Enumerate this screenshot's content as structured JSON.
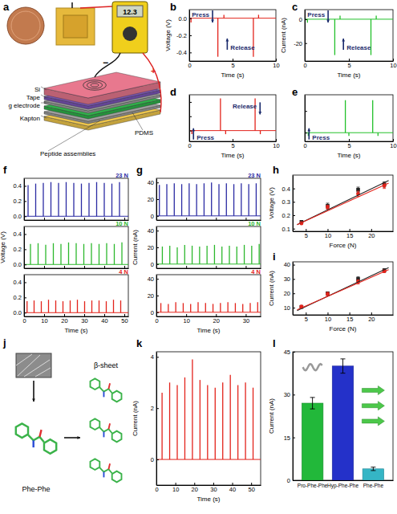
{
  "panel_a": {
    "panel": "a",
    "meter_reading": "12.3",
    "labels": [
      "Si",
      "Tape",
      "g electrode",
      "Kapton",
      "PDMS",
      "Peptide assemblies"
    ],
    "polarity": [
      "−",
      "+"
    ]
  },
  "panel_j": {
    "panel": "j",
    "labels": [
      "Phe-Phe",
      "β-sheet"
    ]
  },
  "chart_data": [
    {
      "panel": "b",
      "type": "spike",
      "x_label": "Time (s)",
      "y_label": "Voltage (V)",
      "xlim": [
        0,
        10
      ],
      "ylim": [
        -0.5,
        0.1
      ],
      "xticks": [
        0,
        5,
        10
      ],
      "yticks": [
        {
          "value": 0,
          "label": "0.0"
        },
        -0.2,
        -0.4
      ],
      "annotations": [
        "Press",
        "Release"
      ],
      "series": [
        {
          "color": "#e3231b",
          "x": [
            0.2,
            3.3,
            4.0,
            7.4,
            8.0
          ],
          "values": [
            -0.05,
            -0.45,
            0.04,
            -0.45,
            0.04
          ]
        }
      ]
    },
    {
      "panel": "c",
      "type": "spike",
      "x_label": "Time (s)",
      "y_label": "Current (nA)",
      "xlim": [
        0,
        10
      ],
      "ylim": [
        -35,
        8
      ],
      "xticks": [
        0,
        5,
        10
      ],
      "yticks": [
        0,
        -20
      ],
      "annotations": [
        "Press",
        "Release"
      ],
      "series": [
        {
          "color": "#22c02a",
          "x": [
            0.3,
            3.4,
            4.0,
            7.5,
            8.1
          ],
          "values": [
            -3,
            -30,
            3,
            -30,
            3
          ]
        }
      ]
    },
    {
      "panel": "d",
      "type": "spike",
      "x_label": "Time (s)",
      "xlim": [
        0,
        10
      ],
      "ylim": [
        -0.15,
        0.5
      ],
      "xticks": [
        0,
        5,
        10
      ],
      "yticks": [
        0,
        0.2,
        0.4
      ],
      "tick_labels": "x",
      "annotations": [
        "Press",
        "Release"
      ],
      "series": [
        {
          "color": "#e3231b",
          "x": [
            0.3,
            3.6,
            4.2,
            7.6,
            8.2
          ],
          "values": [
            -0.05,
            0.45,
            -0.05,
            0.45,
            -0.05
          ]
        }
      ]
    },
    {
      "panel": "e",
      "type": "spike",
      "x_label": "Time (s)",
      "xlim": [
        0,
        10
      ],
      "ylim": [
        -8,
        35
      ],
      "xticks": [
        0,
        5,
        10
      ],
      "yticks": [
        0,
        20
      ],
      "tick_labels": "x",
      "annotations": [
        "Press"
      ],
      "series": [
        {
          "color": "#22c02a",
          "x": [
            0.4,
            4.6,
            5.0,
            7.7,
            8.3
          ],
          "values": [
            -3,
            30,
            -3,
            30,
            -3
          ]
        }
      ]
    },
    {
      "panel": "f",
      "type": "spike",
      "xlim": [
        0,
        52
      ],
      "ylim": [
        -0.05,
        0.5
      ],
      "xticks": [
        0,
        10,
        20,
        30,
        40,
        50
      ],
      "yticks": [
        {
          "value": 0,
          "label": "0.0"
        },
        0.2,
        0.4
      ],
      "tick_labels": "y",
      "annotations": [
        "23 N"
      ],
      "series": [
        {
          "color": "#2b2ba3",
          "x": [
            2,
            5.8,
            9.6,
            13.4,
            17.2,
            21,
            24.8,
            28.6,
            32.4,
            36.2,
            40,
            43.8,
            47.6
          ],
          "values": [
            0.41,
            0.43,
            0.44,
            0.45,
            0.44,
            0.45,
            0.44,
            0.43,
            0.44,
            0.45,
            0.44,
            0.43,
            0.45
          ]
        }
      ]
    },
    {
      "type": "spike",
      "y_label": "Voltage (V)",
      "xlim": [
        0,
        52
      ],
      "ylim": [
        -0.05,
        0.5
      ],
      "xticks": [
        0,
        10,
        20,
        30,
        40,
        50
      ],
      "yticks": [
        {
          "value": 0,
          "label": "0.0"
        },
        0.2,
        0.4
      ],
      "tick_labels": "y",
      "annotations": [
        "10 N"
      ],
      "series": [
        {
          "color": "#2db82d",
          "x": [
            3.2,
            7,
            10.8,
            14.6,
            18.4,
            22.2,
            26,
            29.8,
            33.6,
            37.4,
            41.2,
            45,
            48.8
          ],
          "values": [
            0.27,
            0.28,
            0.26,
            0.28,
            0.27,
            0.29,
            0.28,
            0.27,
            0.28,
            0.27,
            0.28,
            0.27,
            0.29
          ]
        }
      ]
    },
    {
      "type": "spike",
      "x_label": "Time (s)",
      "xlim": [
        0,
        52
      ],
      "ylim": [
        -0.05,
        0.5
      ],
      "xticks": [
        0,
        10,
        20,
        30,
        40,
        50
      ],
      "yticks": [
        {
          "value": 0,
          "label": "0.0"
        },
        0.2,
        0.4
      ],
      "annotations": [
        "4 N"
      ],
      "series": [
        {
          "color": "#e3231b",
          "x": [
            1.5,
            5,
            8.6,
            12.2,
            15.8,
            19.4,
            23,
            26.6,
            30.2,
            33.8,
            37.4,
            41,
            44.6,
            48.2
          ],
          "values": [
            0.15,
            0.16,
            0.15,
            0.17,
            0.16,
            0.15,
            0.16,
            0.17,
            0.15,
            0.16,
            0.16,
            0.15,
            0.17,
            0.16
          ]
        }
      ]
    },
    {
      "panel": "g",
      "type": "spike",
      "xlim": [
        0,
        35
      ],
      "ylim": [
        -5,
        45
      ],
      "xticks": [
        0,
        10,
        20,
        30
      ],
      "yticks": [
        0,
        20,
        40
      ],
      "tick_labels": "y",
      "annotations": [
        "23 N"
      ],
      "series": [
        {
          "color": "#2b2ba3",
          "x": [
            1,
            3.5,
            6,
            8.5,
            11,
            13.5,
            16,
            18.5,
            21,
            23.5,
            26,
            28.5,
            31,
            33.5
          ],
          "values": [
            37,
            38,
            39,
            38,
            39,
            38,
            39,
            40,
            38,
            39,
            38,
            39,
            38,
            39
          ]
        }
      ]
    },
    {
      "type": "spike",
      "y_label": "Current (nA)",
      "xlim": [
        0,
        35
      ],
      "ylim": [
        -5,
        45
      ],
      "xticks": [
        0,
        10,
        20,
        30
      ],
      "yticks": [
        0,
        20,
        40
      ],
      "tick_labels": "y",
      "annotations": [
        "10 N"
      ],
      "series": [
        {
          "color": "#2db82d",
          "x": [
            2,
            4.5,
            7,
            9.5,
            12,
            14.5,
            17,
            19.5,
            22,
            24.5,
            27,
            29.5,
            32,
            34.5
          ],
          "values": [
            21,
            22,
            20,
            23,
            22,
            21,
            22,
            23,
            21,
            22,
            21,
            23,
            22,
            24
          ]
        }
      ]
    },
    {
      "type": "spike",
      "x_label": "Time (s)",
      "xlim": [
        0,
        35
      ],
      "ylim": [
        -5,
        45
      ],
      "xticks": [
        0,
        10,
        20,
        30
      ],
      "yticks": [
        0,
        20,
        40
      ],
      "annotations": [
        "4 N"
      ],
      "series": [
        {
          "color": "#e3231b",
          "x": [
            1.5,
            4,
            6.5,
            9,
            11.5,
            14,
            16.5,
            19,
            21.5,
            24,
            26.5,
            29,
            31.5,
            34
          ],
          "values": [
            11,
            10,
            12,
            11,
            10,
            12,
            11,
            10,
            11,
            12,
            11,
            10,
            11,
            12
          ]
        }
      ]
    },
    {
      "panel": "h",
      "type": "scatter",
      "x_label": "Force (N)",
      "y_label": "Voltage (V)",
      "xlim": [
        2,
        25
      ],
      "ylim": [
        0.08,
        0.5
      ],
      "xticks": [
        5,
        10,
        15,
        20
      ],
      "yticks": [
        0.1,
        0.2,
        0.3,
        0.4
      ],
      "series": [
        {
          "type": "scatter",
          "marker": "square",
          "color": "#222222",
          "x": [
            4,
            10,
            17,
            23
          ],
          "values": [
            0.15,
            0.27,
            0.39,
            0.43
          ],
          "errors": [
            0.01,
            0.02,
            0.02,
            0.02
          ]
        },
        {
          "type": "scatter",
          "marker": "circle",
          "color": "#e3231b",
          "x": [
            4,
            10,
            17,
            23
          ],
          "values": [
            0.14,
            0.26,
            0.36,
            0.42
          ],
          "errors": [
            0.01,
            0.015,
            0.02,
            0.02
          ]
        },
        {
          "type": "line",
          "color": "#222222",
          "x": [
            3,
            24
          ],
          "values": [
            0.13,
            0.46
          ]
        },
        {
          "type": "line",
          "color": "#e3231b",
          "x": [
            3,
            24
          ],
          "values": [
            0.13,
            0.44
          ]
        }
      ]
    },
    {
      "panel": "i",
      "type": "scatter",
      "x_label": "Force (N)",
      "y_label": "Current (nA)",
      "xlim": [
        2,
        25
      ],
      "ylim": [
        5,
        42
      ],
      "xticks": [
        5,
        10,
        15,
        20
      ],
      "yticks": [
        10,
        20,
        30,
        40
      ],
      "series": [
        {
          "type": "scatter",
          "marker": "square",
          "color": "#222222",
          "x": [
            4,
            10,
            17,
            23
          ],
          "values": [
            10.5,
            20,
            30,
            36
          ],
          "errors": [
            0.6,
            1,
            1.5,
            1.2
          ]
        },
        {
          "type": "scatter",
          "marker": "circle",
          "color": "#e3231b",
          "x": [
            4,
            10,
            17,
            23
          ],
          "values": [
            10.8,
            19.5,
            28,
            35.5
          ],
          "errors": [
            0.5,
            1.2,
            1.5,
            1
          ]
        },
        {
          "type": "line",
          "color": "#222222",
          "x": [
            3,
            24
          ],
          "values": [
            8,
            38
          ]
        },
        {
          "type": "line",
          "color": "#e3231b",
          "x": [
            3,
            24
          ],
          "values": [
            8.5,
            36.5
          ]
        }
      ]
    },
    {
      "panel": "k",
      "type": "spike",
      "x_label": "Time (s)",
      "y_label": "Current (nA)",
      "xlim": [
        0,
        55
      ],
      "ylim": [
        -1,
        4.2
      ],
      "xticks": [
        0,
        10,
        20,
        30,
        40,
        50
      ],
      "yticks": [
        0,
        2,
        4
      ],
      "series": [
        {
          "color": "#e3231b",
          "x": [
            3,
            7,
            11,
            15,
            19,
            23,
            27,
            31,
            35,
            39,
            43,
            47,
            51
          ],
          "values": [
            2.6,
            3.0,
            2.9,
            3.2,
            3.9,
            3.1,
            2.9,
            2.8,
            3.0,
            3.3,
            2.9,
            3.0,
            2.8
          ]
        }
      ]
    },
    {
      "panel": "l",
      "type": "bar",
      "y_label": "Current (nA)",
      "categories": [
        "Pro-Phe-Phe",
        "Hyp-Phe-Phe",
        "Phe-Phe"
      ],
      "values": [
        27,
        40,
        4
      ],
      "errors": [
        2,
        2.5,
        0.6
      ],
      "colors": [
        "#22b83a",
        "#2431c9",
        "#35b5c5"
      ],
      "ylim": [
        0,
        45
      ],
      "yticks": [
        0,
        15,
        30,
        45
      ]
    }
  ]
}
